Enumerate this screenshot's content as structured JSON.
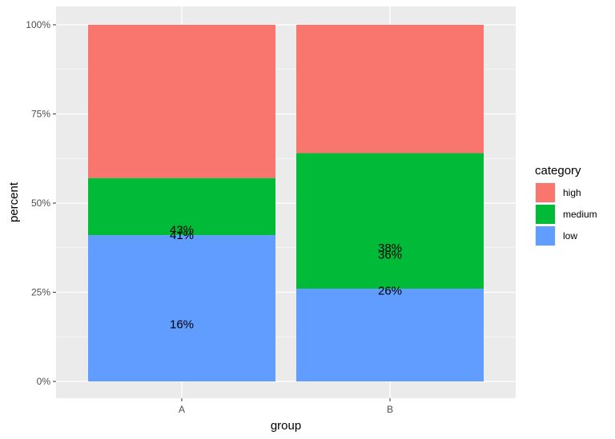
{
  "chart_data": {
    "type": "bar",
    "stacked": true,
    "categories": [
      "A",
      "B"
    ],
    "series": [
      {
        "name": "high",
        "values": [
          43,
          36
        ],
        "color": "#F8766D"
      },
      {
        "name": "medium",
        "values": [
          16,
          38
        ],
        "color": "#00BA38"
      },
      {
        "name": "low",
        "values": [
          41,
          26
        ],
        "color": "#619CFF"
      }
    ],
    "data_labels": [
      {
        "category": "A",
        "text": "43%",
        "y": 42.5
      },
      {
        "category": "A",
        "text": "41%",
        "y": 41.0
      },
      {
        "category": "A",
        "text": "16%",
        "y": 16.0
      },
      {
        "category": "B",
        "text": "38%",
        "y": 37.5
      },
      {
        "category": "B",
        "text": "36%",
        "y": 35.5
      },
      {
        "category": "B",
        "text": "26%",
        "y": 25.5
      }
    ],
    "xlabel": "group",
    "ylabel": "percent",
    "ylim": [
      0,
      100
    ],
    "yticks": [
      0,
      25,
      50,
      75,
      100
    ],
    "ytick_labels": [
      "0%",
      "25%",
      "50%",
      "75%",
      "100%"
    ],
    "legend_title": "category",
    "legend_position": "right",
    "grid": true,
    "panel_background": "#EBEBEB"
  }
}
